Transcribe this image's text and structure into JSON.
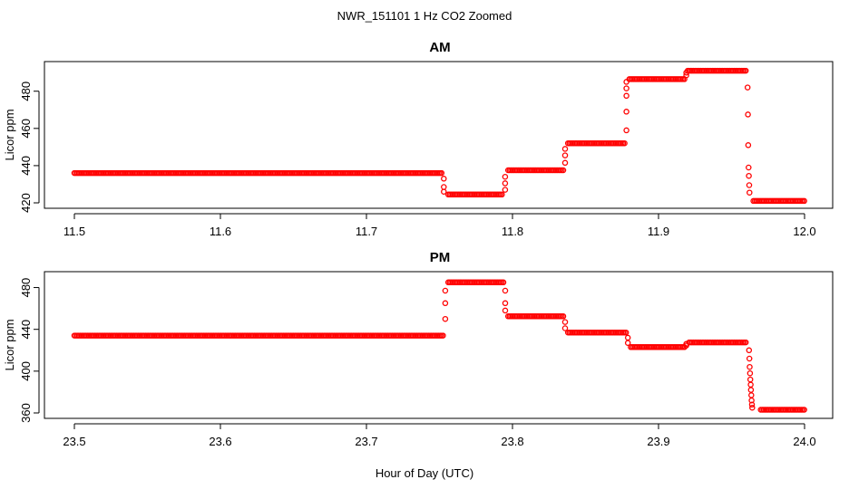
{
  "title": "NWR_151101  1 Hz CO2 Zoomed",
  "xlabel": "Hour of Day (UTC)",
  "colors": {
    "points": "#ff0000",
    "axis": "#000000"
  },
  "chart_data": [
    {
      "type": "scatter",
      "title": "AM",
      "ylabel": "Licor ppm",
      "xlim": [
        11.5,
        12.0
      ],
      "ylim": [
        420,
        493
      ],
      "x_ticks": [
        11.5,
        11.6,
        11.7,
        11.8,
        11.9,
        12.0
      ],
      "x_tick_labels": [
        "11.5",
        "11.6",
        "11.7",
        "11.8",
        "11.9",
        "12.0"
      ],
      "y_ticks": [
        420,
        440,
        460,
        480
      ],
      "y_tick_labels": [
        "420",
        "440",
        "460",
        "480"
      ],
      "segments": [
        {
          "x_start": 11.5,
          "x_end": 11.752,
          "y": 436
        },
        {
          "x_start": 11.756,
          "x_end": 11.793,
          "y": 424.5
        },
        {
          "x_start": 11.797,
          "x_end": 11.835,
          "y": 437.5
        },
        {
          "x_start": 11.838,
          "x_end": 11.877,
          "y": 452
        },
        {
          "x_start": 11.88,
          "x_end": 11.918,
          "y": 486.5
        },
        {
          "x_start": 11.92,
          "x_end": 11.96,
          "y": 491
        },
        {
          "x_start": 11.965,
          "x_end": 12.0,
          "y": 421
        }
      ],
      "transitions": [
        {
          "x": 11.753,
          "values": [
            433,
            428.5,
            426
          ]
        },
        {
          "x": 11.795,
          "values": [
            427,
            430.5,
            434
          ]
        },
        {
          "x": 11.836,
          "values": [
            441.5,
            445.5,
            449
          ]
        },
        {
          "x": 11.878,
          "values": [
            459,
            469,
            477.5,
            481.5,
            485
          ]
        },
        {
          "x": 11.919,
          "values": [
            488.5,
            490
          ]
        },
        {
          "x": 11.961,
          "values": [
            482,
            467.5,
            451,
            439,
            434.5,
            429.5,
            425.5
          ]
        }
      ]
    },
    {
      "type": "scatter",
      "title": "PM",
      "ylabel": "Licor ppm",
      "xlim": [
        23.5,
        24.0
      ],
      "ylim": [
        360,
        490
      ],
      "x_ticks": [
        23.5,
        23.6,
        23.7,
        23.8,
        23.9,
        24.0
      ],
      "x_tick_labels": [
        "23.5",
        "23.6",
        "23.7",
        "23.8",
        "23.9",
        "24.0"
      ],
      "y_ticks": [
        360,
        400,
        440,
        480
      ],
      "y_tick_labels": [
        "360",
        "400",
        "440",
        "480"
      ],
      "segments": [
        {
          "x_start": 23.5,
          "x_end": 23.753,
          "y": 434
        },
        {
          "x_start": 23.756,
          "x_end": 23.794,
          "y": 485
        },
        {
          "x_start": 23.797,
          "x_end": 23.835,
          "y": 452.5
        },
        {
          "x_start": 23.838,
          "x_end": 23.878,
          "y": 437
        },
        {
          "x_start": 23.881,
          "x_end": 23.918,
          "y": 423
        },
        {
          "x_start": 23.921,
          "x_end": 23.96,
          "y": 427.5
        },
        {
          "x_start": 23.97,
          "x_end": 24.0,
          "y": 363
        }
      ],
      "transitions": [
        {
          "x": 23.754,
          "values": [
            450,
            465,
            477
          ]
        },
        {
          "x": 23.795,
          "values": [
            477,
            465,
            458
          ]
        },
        {
          "x": 23.836,
          "values": [
            447,
            441
          ]
        },
        {
          "x": 23.879,
          "values": [
            432,
            427
          ]
        },
        {
          "x": 23.919,
          "values": [
            424.5,
            426
          ]
        },
        {
          "x": 23.962,
          "values": [
            420,
            412,
            404,
            398,
            392,
            387,
            382,
            377,
            372,
            368,
            365
          ]
        }
      ]
    }
  ]
}
